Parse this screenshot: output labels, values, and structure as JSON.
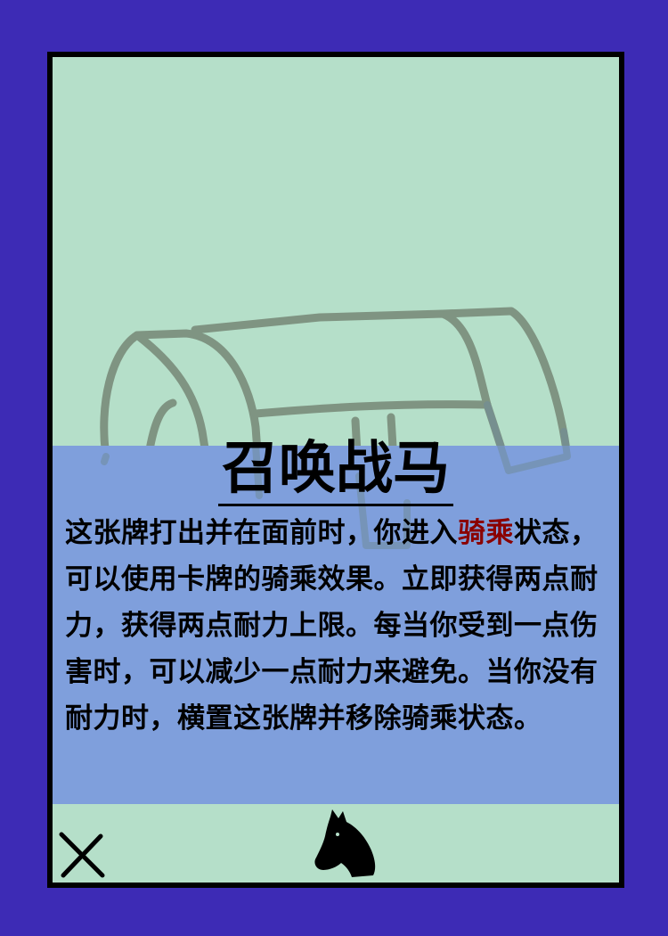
{
  "card": {
    "title": "召唤战马",
    "description": {
      "before": "这张牌打出并在面前时，你进入",
      "keyword": "骑乘",
      "after": "状态，可以使用卡牌的骑乘效果。立即获得两点耐力，获得两点耐力上限。每当你受到一点伤害时，可以减少一点耐力来避免。当你没有耐力时，横置这张牌并移除骑乘状态。"
    },
    "colors": {
      "background": "#3d2bb5",
      "card_fill": "#b5dfc9",
      "text_panel": "#7f9fdc",
      "keyword": "#8a0000",
      "art_stroke": "#7f9482"
    },
    "icons": {
      "art": "saddle-icon",
      "bottom_left": "cross-icon",
      "bottom_center": "horse-head-icon"
    }
  }
}
